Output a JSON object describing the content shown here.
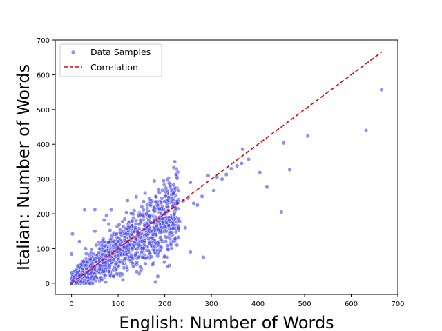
{
  "chart_data": {
    "type": "scatter",
    "title": "",
    "xlabel": "English: Number of Words",
    "ylabel": "Italian: Number of Words",
    "xlim": [
      -35,
      700
    ],
    "ylim": [
      -32,
      700
    ],
    "xticks": [
      0,
      100,
      200,
      300,
      400,
      500,
      600,
      700
    ],
    "yticks": [
      0,
      100,
      200,
      300,
      400,
      500,
      600,
      700
    ],
    "grid": false,
    "legend": {
      "placement": "top-left"
    },
    "colors": {
      "points": "#4444ee",
      "point_edge": "#ffffff",
      "line": "#dd0000"
    },
    "series": [
      {
        "name": "Data Samples",
        "kind": "scatter",
        "points": [
          [
            665,
            557
          ],
          [
            632,
            440
          ],
          [
            507,
            424
          ],
          [
            468,
            327
          ],
          [
            455,
            404
          ],
          [
            450,
            205
          ],
          [
            419,
            277
          ],
          [
            404,
            319
          ],
          [
            380,
            357
          ],
          [
            367,
            386
          ],
          [
            365,
            345
          ],
          [
            355,
            338
          ],
          [
            343,
            330
          ],
          [
            332,
            313
          ],
          [
            323,
            300
          ],
          [
            312,
            306
          ],
          [
            305,
            267
          ],
          [
            293,
            310
          ],
          [
            283,
            75
          ],
          [
            280,
            250
          ],
          [
            270,
            225
          ],
          [
            262,
            230
          ],
          [
            255,
            290
          ],
          [
            255,
            90
          ],
          [
            250,
            245
          ],
          [
            244,
            160
          ],
          [
            240,
            237
          ],
          [
            232,
            178
          ],
          [
            226,
            110
          ],
          [
            222,
            128
          ],
          [
            218,
            240
          ],
          [
            210,
            182
          ],
          [
            206,
            48
          ],
          [
            199,
            235
          ],
          [
            190,
            185
          ],
          [
            185,
            20
          ],
          [
            180,
            4
          ],
          [
            172,
            150
          ],
          [
            152,
            75
          ],
          [
            120,
            238
          ],
          [
            110,
            150
          ],
          [
            85,
            212
          ],
          [
            75,
            195
          ],
          [
            70,
            182
          ],
          [
            50,
            212
          ],
          [
            28,
            212
          ],
          [
            17,
            120
          ],
          [
            12,
            32
          ],
          [
            5,
            18
          ],
          [
            2,
            142
          ],
          [
            0,
            84
          ],
          [
            0,
            0
          ],
          [
            3,
            8
          ],
          [
            60,
            40
          ],
          [
            40,
            70
          ],
          [
            95,
            55
          ],
          [
            130,
            100
          ],
          [
            145,
            110
          ],
          [
            160,
            140
          ],
          [
            100,
            120
          ],
          [
            90,
            20
          ],
          [
            20,
            5
          ],
          [
            60,
            100
          ],
          [
            80,
            170
          ],
          [
            140,
            60
          ],
          [
            200,
            200
          ],
          [
            215,
            100
          ],
          [
            230,
            185
          ],
          [
            110,
            10
          ],
          [
            50,
            150
          ],
          [
            30,
            100
          ],
          [
            170,
            175
          ],
          [
            125,
            160
          ],
          [
            65,
            10
          ],
          [
            100,
            80
          ]
        ]
      },
      {
        "name": "Correlation",
        "kind": "line",
        "x": [
          0,
          665
        ],
        "y": [
          0,
          665
        ]
      }
    ]
  }
}
